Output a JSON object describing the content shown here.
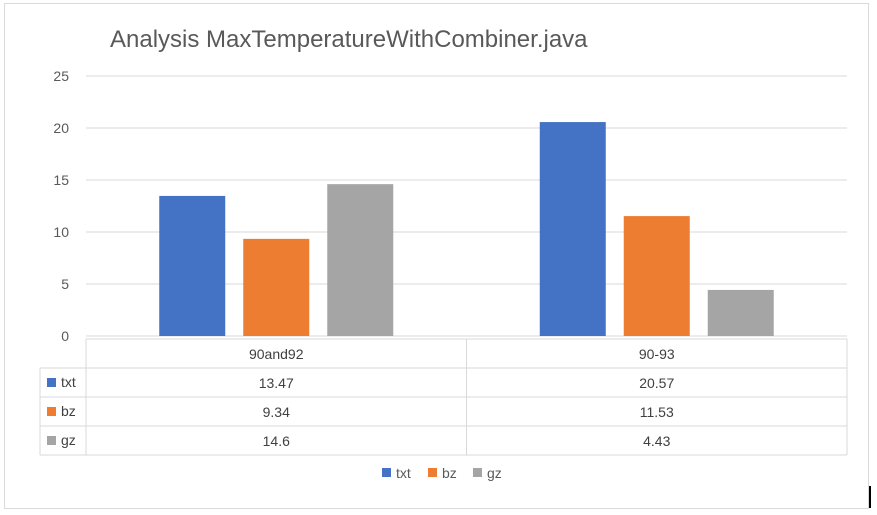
{
  "chart_data": {
    "type": "bar",
    "title": "Analysis  MaxTemperatureWithCombiner.java",
    "categories": [
      "90and92",
      "90-93"
    ],
    "series": [
      {
        "name": "txt",
        "color": "#4472c4",
        "values": [
          13.47,
          20.57
        ],
        "labels": [
          "13.47",
          "20.57"
        ]
      },
      {
        "name": "bz",
        "color": "#ed7d31",
        "values": [
          9.34,
          11.53
        ],
        "labels": [
          "9.34",
          "11.53"
        ]
      },
      {
        "name": "gz",
        "color": "#a5a5a5",
        "values": [
          14.6,
          4.43
        ],
        "labels": [
          "14.6",
          "4.43"
        ]
      }
    ],
    "ylim": [
      0,
      25
    ],
    "yticks": [
      "0",
      "5",
      "10",
      "15",
      "20",
      "25"
    ],
    "grid": true,
    "data_table": true,
    "legend_position": "bottom"
  }
}
